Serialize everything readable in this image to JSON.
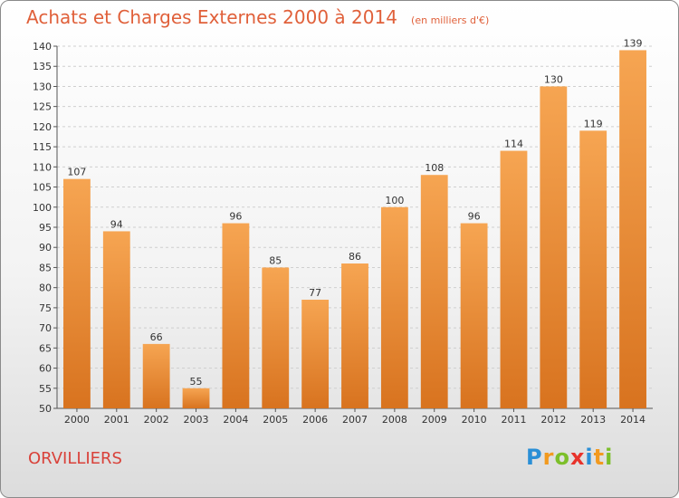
{
  "header": {
    "title": "Achats et Charges Externes 2000 à 2014",
    "subtitle": "(en milliers d'€)"
  },
  "footer": {
    "city": "ORVILLIERS",
    "logo_letters": [
      "P",
      "r",
      "o",
      "x",
      "i",
      "t",
      "i"
    ],
    "logo_colors": [
      "#2a8fd6",
      "#f29a1f",
      "#7cbf2a",
      "#e8332b",
      "#2a8fd6",
      "#f29a1f",
      "#7cbf2a"
    ]
  },
  "colors": {
    "bar_top": "#f6a552",
    "bar_bottom": "#d8731f",
    "title": "#e0603a",
    "city": "#d9423a"
  },
  "chart_data": {
    "type": "bar",
    "title": "Achats et Charges Externes 2000 à 2014",
    "subtitle": "(en milliers d'€)",
    "categories": [
      "2000",
      "2001",
      "2002",
      "2003",
      "2004",
      "2005",
      "2006",
      "2007",
      "2008",
      "2009",
      "2010",
      "2011",
      "2012",
      "2013",
      "2014"
    ],
    "values": [
      107,
      94,
      66,
      55,
      96,
      85,
      77,
      86,
      100,
      108,
      96,
      114,
      130,
      119,
      139
    ],
    "ylim": [
      50,
      140
    ],
    "yticks": [
      50,
      55,
      60,
      65,
      70,
      75,
      80,
      85,
      90,
      95,
      100,
      105,
      110,
      115,
      120,
      125,
      130,
      135,
      140
    ],
    "grid": true,
    "xlabel": "",
    "ylabel": ""
  }
}
